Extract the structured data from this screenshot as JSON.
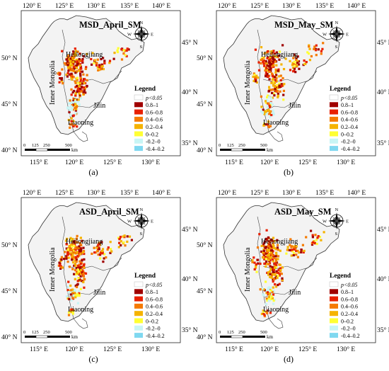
{
  "panels": [
    {
      "title": "MSD_April_SM",
      "caption": "(a)"
    },
    {
      "title": "MSD_May_SM",
      "caption": "(b)"
    },
    {
      "title": "ASD_April_SM",
      "caption": "(c)"
    },
    {
      "title": "ASD_May_SM",
      "caption": "(d)"
    }
  ],
  "axes": {
    "top_lon": [
      "120° E",
      "125° E",
      "130° E",
      "135° E",
      "140° E"
    ],
    "bottom_lon": [
      "115° E",
      "120° E",
      "125° E",
      "130° E"
    ],
    "left_lat": [
      "50° N",
      "45° N",
      "40° N"
    ],
    "right_lat": [
      "45° N",
      "40° N",
      "35° N"
    ]
  },
  "regions": {
    "heilongjiang": "Heilongjiang",
    "inner_mongolia": "Inner Mongolia",
    "jilin": "Jilin",
    "liaoning": "Liaoning"
  },
  "compass": {
    "n": "N",
    "e": "E",
    "s": "S",
    "w": "W"
  },
  "scale_bar": {
    "labels": [
      "0",
      "125",
      "250",
      "500"
    ],
    "unit": "km"
  },
  "legend": {
    "title": "Legend",
    "entries": [
      {
        "label": "p<0.05",
        "color": "#ffffff"
      },
      {
        "label": "0.8–1",
        "color": "#a00000"
      },
      {
        "label": "0.6–0.8",
        "color": "#e82000"
      },
      {
        "label": "0.4–0.6",
        "color": "#f57a00"
      },
      {
        "label": "0.2–0.4",
        "color": "#f5b300"
      },
      {
        "label": "0–0.2",
        "color": "#ffff33"
      },
      {
        "label": "-0.2–0",
        "color": "#c8f5f5"
      },
      {
        "label": "-0.4–0.2",
        "color": "#7fd8f0"
      }
    ]
  }
}
